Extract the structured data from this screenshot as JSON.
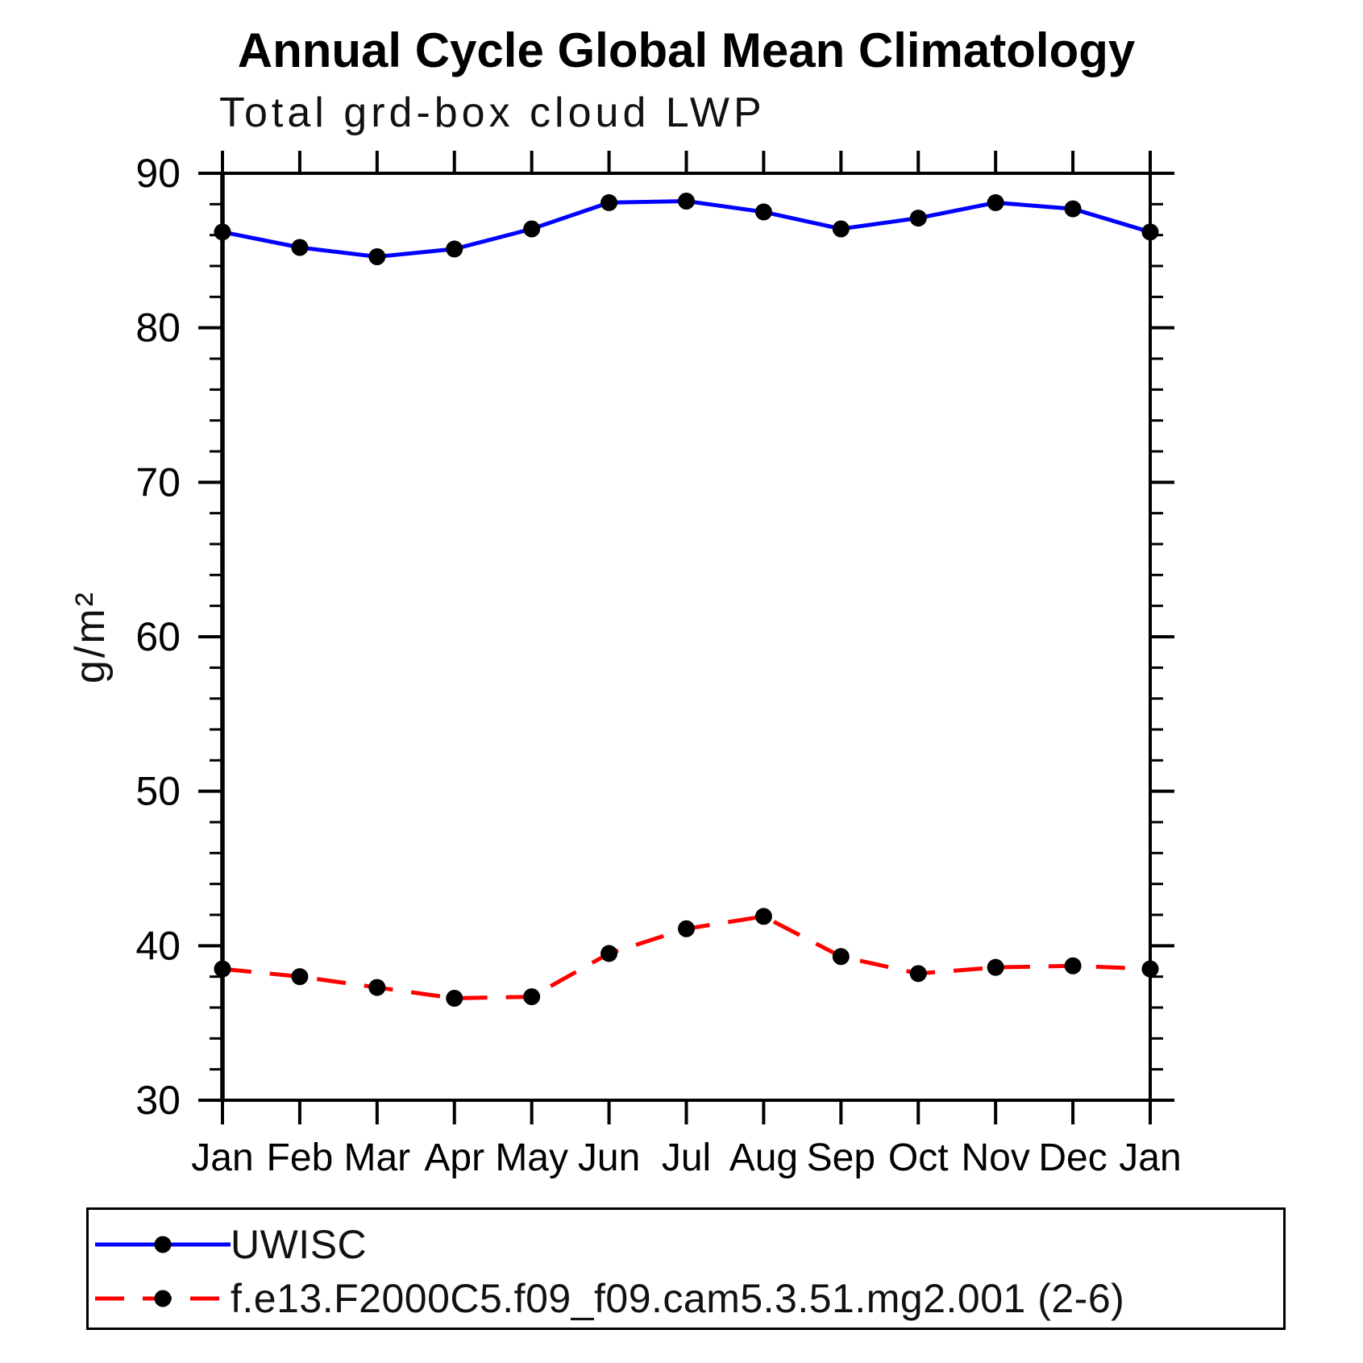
{
  "header": {
    "title": "Annual Cycle Global Mean Climatology",
    "subtitle": "Total grd-box cloud LWP"
  },
  "chart_data": {
    "type": "line",
    "title": "Annual Cycle Global Mean Climatology",
    "subtitle": "Total grd-box cloud LWP",
    "xlabel": "",
    "ylabel": "g/m²",
    "categories": [
      "Jan",
      "Feb",
      "Mar",
      "Apr",
      "May",
      "Jun",
      "Jul",
      "Aug",
      "Sep",
      "Oct",
      "Nov",
      "Dec",
      "Jan"
    ],
    "ylim": [
      30,
      90
    ],
    "ytick_values": [
      30,
      40,
      50,
      60,
      70,
      80,
      90
    ],
    "ytick_labels": [
      "30",
      "40",
      "50",
      "60",
      "70",
      "80",
      "90"
    ],
    "ytick_minor_step": 2,
    "grid": false,
    "legend_position": "bottom-left box",
    "series": [
      {
        "name": "UWISC",
        "color": "#0000ff",
        "line_style": "solid",
        "marker": "circle",
        "marker_color": "#000000",
        "values": [
          86.2,
          85.2,
          84.6,
          85.1,
          86.4,
          88.1,
          88.2,
          87.5,
          86.4,
          87.1,
          88.1,
          87.7,
          86.2
        ]
      },
      {
        "name": "f.e13.F2000C5.f09_f09.cam5.3.51.mg2.001 (2-6)",
        "color": "#ff0000",
        "line_style": "dashed",
        "marker": "circle",
        "marker_color": "#000000",
        "values": [
          38.5,
          38.0,
          37.3,
          36.6,
          36.7,
          39.5,
          41.1,
          41.9,
          39.3,
          38.2,
          38.6,
          38.7,
          38.5
        ]
      }
    ]
  }
}
